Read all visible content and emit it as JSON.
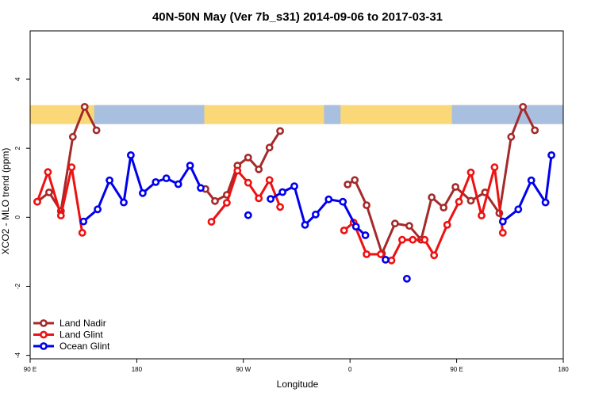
{
  "chart_data": {
    "type": "line",
    "title": "40N-50N May (Ver 7b_s31)   2014-09-06 to 2017-03-31",
    "xlabel": "Longitude",
    "ylabel": "XCO2 - MLO trend (ppm)",
    "xlim": [
      90,
      540
    ],
    "ylim": [
      -4.1,
      5.4
    ],
    "x_ticks": [
      {
        "value": 90,
        "label": "90 E"
      },
      {
        "value": 180,
        "label": "180"
      },
      {
        "value": 270,
        "label": "90 W"
      },
      {
        "value": 360,
        "label": "0"
      },
      {
        "value": 450,
        "label": "90 E"
      },
      {
        "value": 540,
        "label": "180"
      }
    ],
    "y_ticks": [
      {
        "value": -4,
        "label": "-4"
      },
      {
        "value": -2,
        "label": "-2"
      },
      {
        "value": 0,
        "label": "0"
      },
      {
        "value": 2,
        "label": "2"
      },
      {
        "value": 4,
        "label": "4"
      }
    ],
    "legend_position": "bottom-left",
    "land_ocean_band": {
      "y_range": [
        2.7,
        3.25
      ],
      "land_color": "#fbd877",
      "ocean_color": "#a9bfdf",
      "ocean_spans": [
        [
          144,
          237
        ],
        [
          338,
          352
        ],
        [
          446,
          541
        ]
      ]
    },
    "series": [
      {
        "name": "Land Nadir",
        "color": "#a52a2a",
        "points": [
          [
            96,
            0.45
          ],
          [
            106,
            0.72
          ],
          [
            116,
            0.18
          ],
          [
            126,
            2.33
          ],
          [
            136,
            3.2
          ],
          [
            146,
            2.52
          ],
          null,
          [
            238,
            0.82
          ],
          [
            246,
            0.47
          ],
          [
            256,
            0.65
          ],
          [
            265,
            1.5
          ],
          [
            274,
            1.73
          ],
          [
            283,
            1.39
          ],
          [
            292,
            2.02
          ],
          [
            301,
            2.5
          ],
          null,
          [
            358,
            0.95
          ],
          [
            364,
            1.08
          ],
          [
            374,
            0.35
          ],
          [
            387,
            -1.05
          ],
          [
            398,
            -0.18
          ],
          [
            410,
            -0.25
          ],
          [
            420,
            -0.65
          ],
          [
            429,
            0.58
          ],
          [
            439,
            0.28
          ],
          [
            449,
            0.88
          ],
          [
            462,
            0.48
          ],
          [
            474,
            0.72
          ],
          [
            486,
            0.12
          ],
          [
            496,
            2.33
          ],
          [
            506,
            3.2
          ],
          [
            516,
            2.52
          ]
        ]
      },
      {
        "name": "Land Glint",
        "color": "#ee1111",
        "points": [
          [
            96,
            0.45
          ],
          [
            105,
            1.31
          ],
          [
            116,
            0.05
          ],
          [
            125,
            1.45
          ],
          [
            134,
            -0.45
          ],
          null,
          [
            243,
            -0.13
          ],
          [
            256,
            0.42
          ],
          [
            265,
            1.35
          ],
          [
            274,
            1.0
          ],
          [
            283,
            0.55
          ],
          [
            292,
            1.08
          ],
          [
            301,
            0.3
          ],
          null,
          [
            355,
            -0.38
          ],
          [
            363,
            -0.15
          ],
          [
            374,
            -1.07
          ],
          [
            386,
            -1.07
          ],
          [
            395,
            -1.25
          ],
          [
            404,
            -0.65
          ],
          [
            413,
            -0.65
          ],
          [
            423,
            -0.65
          ],
          [
            431,
            -1.1
          ],
          [
            442,
            -0.22
          ],
          [
            452,
            0.45
          ],
          [
            462,
            1.3
          ],
          [
            471,
            0.05
          ],
          [
            482,
            1.45
          ],
          [
            489,
            -0.45
          ]
        ]
      },
      {
        "name": "Ocean Glint",
        "color": "#0000ee",
        "points": [
          [
            135,
            -0.12
          ],
          [
            147,
            0.23
          ],
          [
            157,
            1.07
          ],
          [
            169,
            0.43
          ],
          [
            175,
            1.8
          ],
          [
            185,
            0.7
          ],
          [
            196,
            1.02
          ],
          [
            205,
            1.13
          ],
          [
            215,
            0.96
          ],
          [
            225,
            1.5
          ],
          [
            234,
            0.85
          ],
          null,
          [
            274,
            0.06
          ],
          null,
          [
            293,
            0.53
          ],
          [
            303,
            0.73
          ],
          [
            313,
            0.9
          ],
          [
            322,
            -0.22
          ],
          [
            331,
            0.08
          ],
          [
            342,
            0.52
          ],
          [
            354,
            0.45
          ],
          [
            365,
            -0.27
          ],
          [
            373,
            -0.52
          ],
          null,
          [
            390,
            -1.23
          ],
          null,
          [
            408,
            -1.78
          ],
          null,
          [
            489,
            -0.12
          ],
          [
            502,
            0.23
          ],
          [
            513,
            1.07
          ],
          [
            525,
            0.43
          ],
          [
            530,
            1.8
          ]
        ]
      }
    ]
  }
}
